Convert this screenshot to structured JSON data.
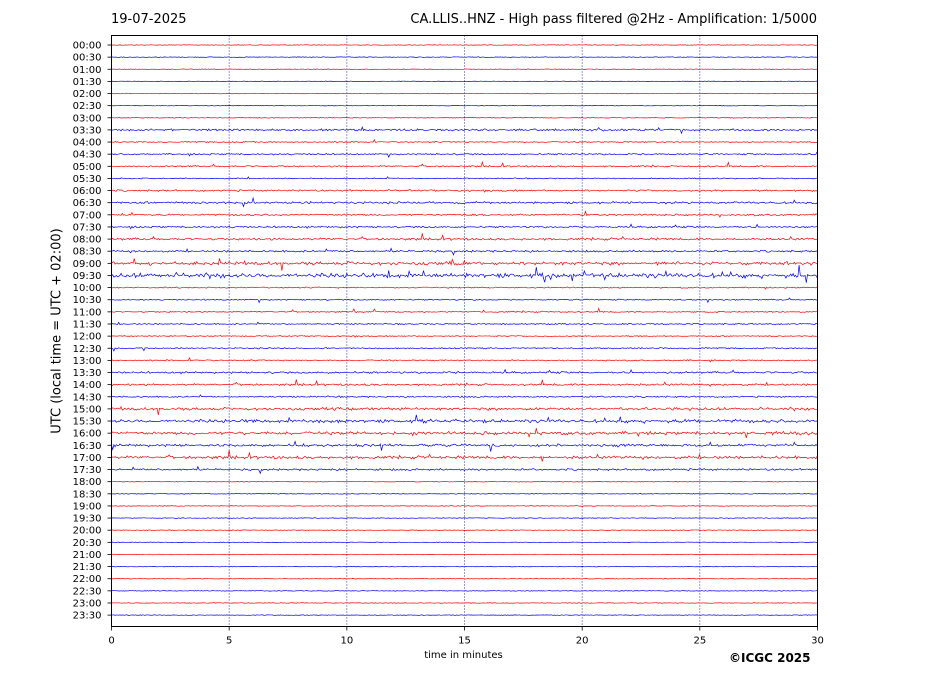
{
  "header": {
    "date": "19-07-2025",
    "title": "CA.LLIS..HNZ - High pass filtered @2Hz - Amplification: 1/5000"
  },
  "copyright": "©ICGC 2025",
  "colors": {
    "red": "#ff0000",
    "blue": "#0000ff",
    "grid": "#0000aa",
    "frame": "#000000"
  },
  "chart_data": {
    "type": "line",
    "xlabel": "time in minutes",
    "ylabel": "UTC (local time = UTC + 02:00)",
    "xlim": [
      0,
      30
    ],
    "xticks": [
      0,
      5,
      10,
      15,
      20,
      25,
      30
    ],
    "grid": "vertical dotted at every 5 minutes",
    "row_labels": [
      "00:00",
      "00:30",
      "01:00",
      "01:30",
      "02:00",
      "02:30",
      "03:00",
      "03:30",
      "04:00",
      "04:30",
      "05:00",
      "05:30",
      "06:00",
      "06:30",
      "07:00",
      "07:30",
      "08:00",
      "08:30",
      "09:00",
      "09:30",
      "10:00",
      "10:30",
      "11:00",
      "11:30",
      "12:00",
      "12:30",
      "13:00",
      "13:30",
      "14:00",
      "14:30",
      "15:00",
      "15:30",
      "16:00",
      "16:30",
      "17:00",
      "17:30",
      "18:00",
      "18:30",
      "19:00",
      "19:30",
      "20:00",
      "20:30",
      "21:00",
      "21:30",
      "22:00",
      "22:30",
      "23:00",
      "23:30"
    ],
    "trace_colors": "alternating red (even rows) and blue (odd rows)",
    "activity": [
      0,
      0,
      0,
      0,
      0,
      0,
      0,
      0.3,
      0.1,
      0.2,
      0.2,
      0.1,
      0.25,
      0.35,
      0.25,
      0.25,
      0.35,
      0.3,
      0.6,
      0.9,
      0.15,
      0.15,
      0.15,
      0.15,
      0.1,
      0.15,
      0.15,
      0.3,
      0.3,
      0.2,
      0.45,
      0.6,
      0.55,
      0.45,
      0.5,
      0.3,
      0,
      0,
      0,
      0,
      0,
      0,
      0,
      0,
      0,
      0,
      0,
      0
    ]
  }
}
